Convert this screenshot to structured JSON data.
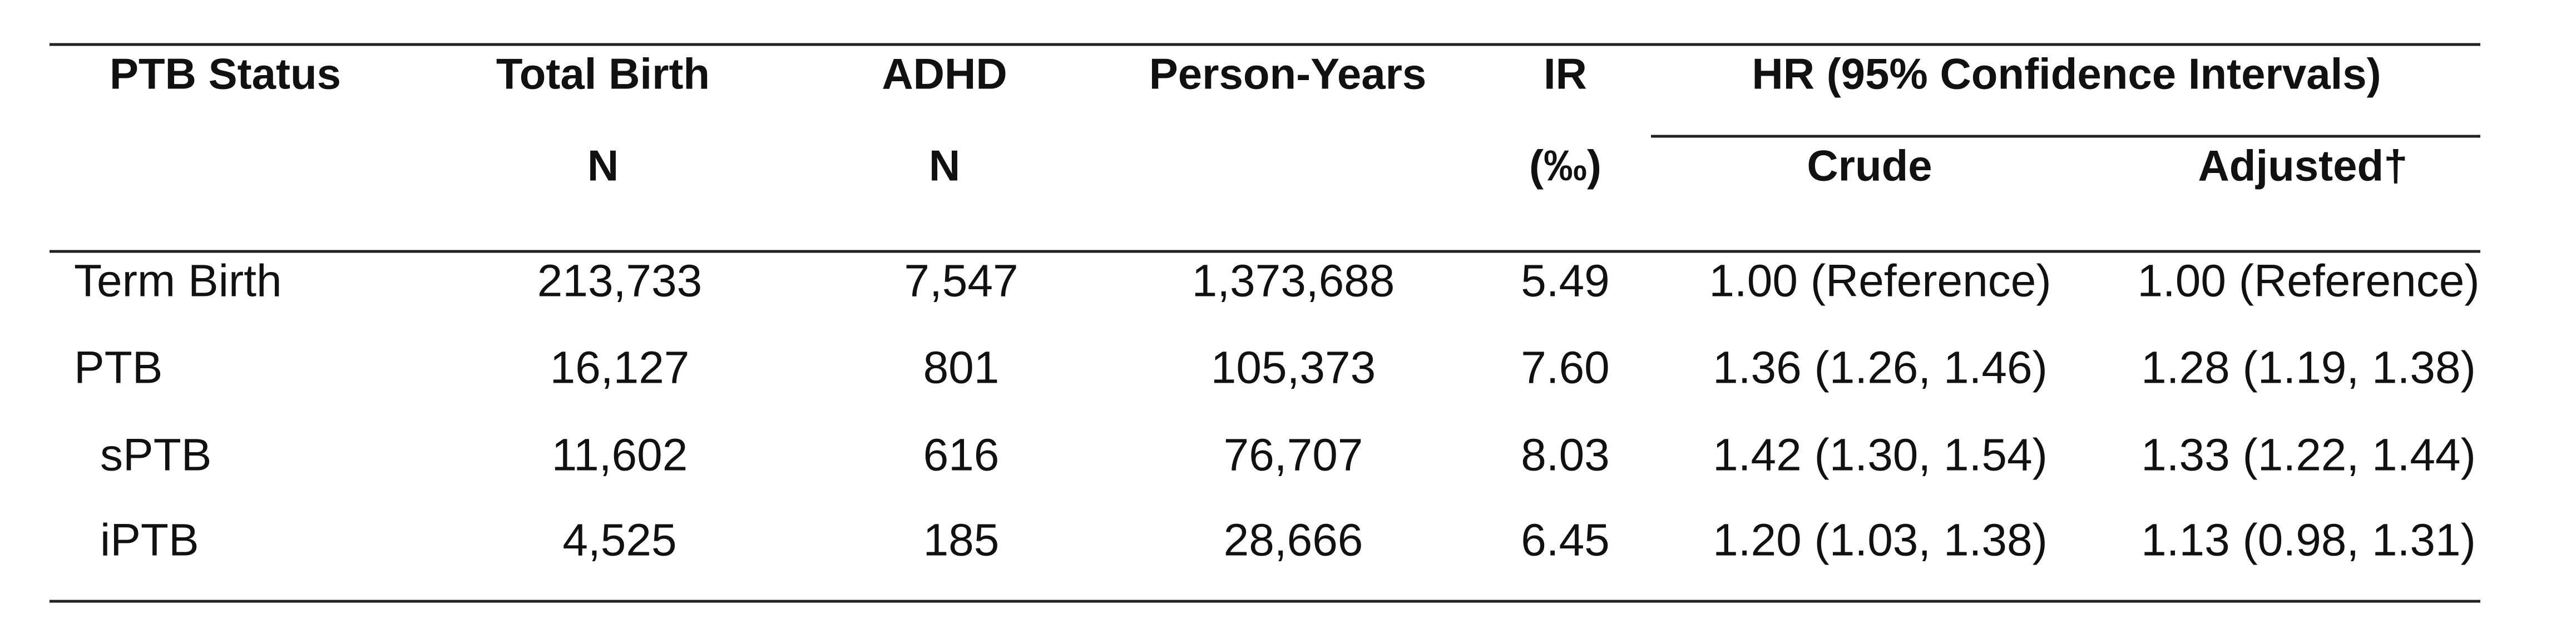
{
  "table": {
    "header_top": [
      "PTB Status",
      "Total Birth",
      "ADHD",
      "Person-Years",
      "IR",
      "HR (95% Confidence Intervals)"
    ],
    "header_bottom": [
      "N",
      "N",
      "(‰)",
      "Crude",
      "Adjusted†"
    ],
    "rows": [
      [
        "Term Birth",
        "213,733",
        "7,547",
        "1,373,688",
        "5.49",
        "1.00 (Reference)",
        "1.00 (Reference)"
      ],
      [
        "PTB",
        "16,127",
        "801",
        "105,373",
        "7.60",
        "1.36 (1.26, 1.46)",
        "1.28 (1.19, 1.38)"
      ],
      [
        "sPTB",
        "11,602",
        "616",
        "76,707",
        "8.03",
        "1.42 (1.30, 1.54)",
        "1.33 (1.22, 1.44)"
      ],
      [
        "iPTB",
        "4,525",
        "185",
        "28,666",
        "6.45",
        "1.20 (1.03, 1.38)",
        "1.13 (0.98, 1.31)"
      ]
    ]
  }
}
